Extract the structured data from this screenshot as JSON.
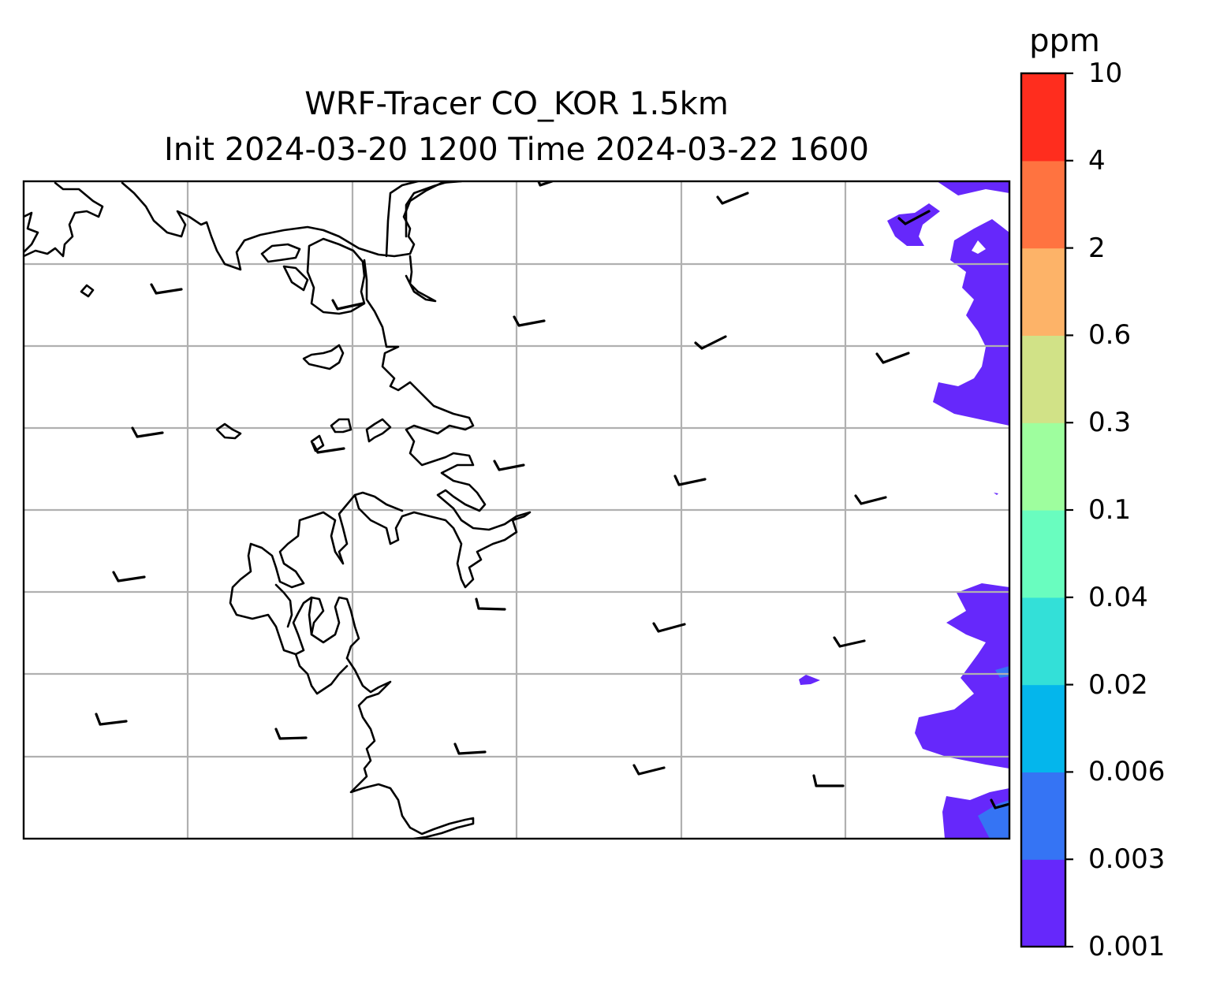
{
  "title_line1": "WRF-Tracer CO_KOR 1.5km",
  "title_line2": "Init 2024-03-20 1200 Time 2024-03-22 1600",
  "colorbar": {
    "unit": "ppm",
    "levels": [
      "0.001",
      "0.003",
      "0.006",
      "0.02",
      "0.04",
      "0.1",
      "0.3",
      "0.6",
      "2",
      "4",
      "10"
    ],
    "colors": [
      "#6628fb",
      "#3574f4",
      "#04b6ec",
      "#33e0d8",
      "#69fdbf",
      "#9efe9e",
      "#d1e287",
      "#fdb368",
      "#ff7340",
      "#ff2d1e"
    ]
  },
  "map": {
    "grid": true,
    "coastline_color": "#000000",
    "grid_color": "#b0b0b0"
  }
}
